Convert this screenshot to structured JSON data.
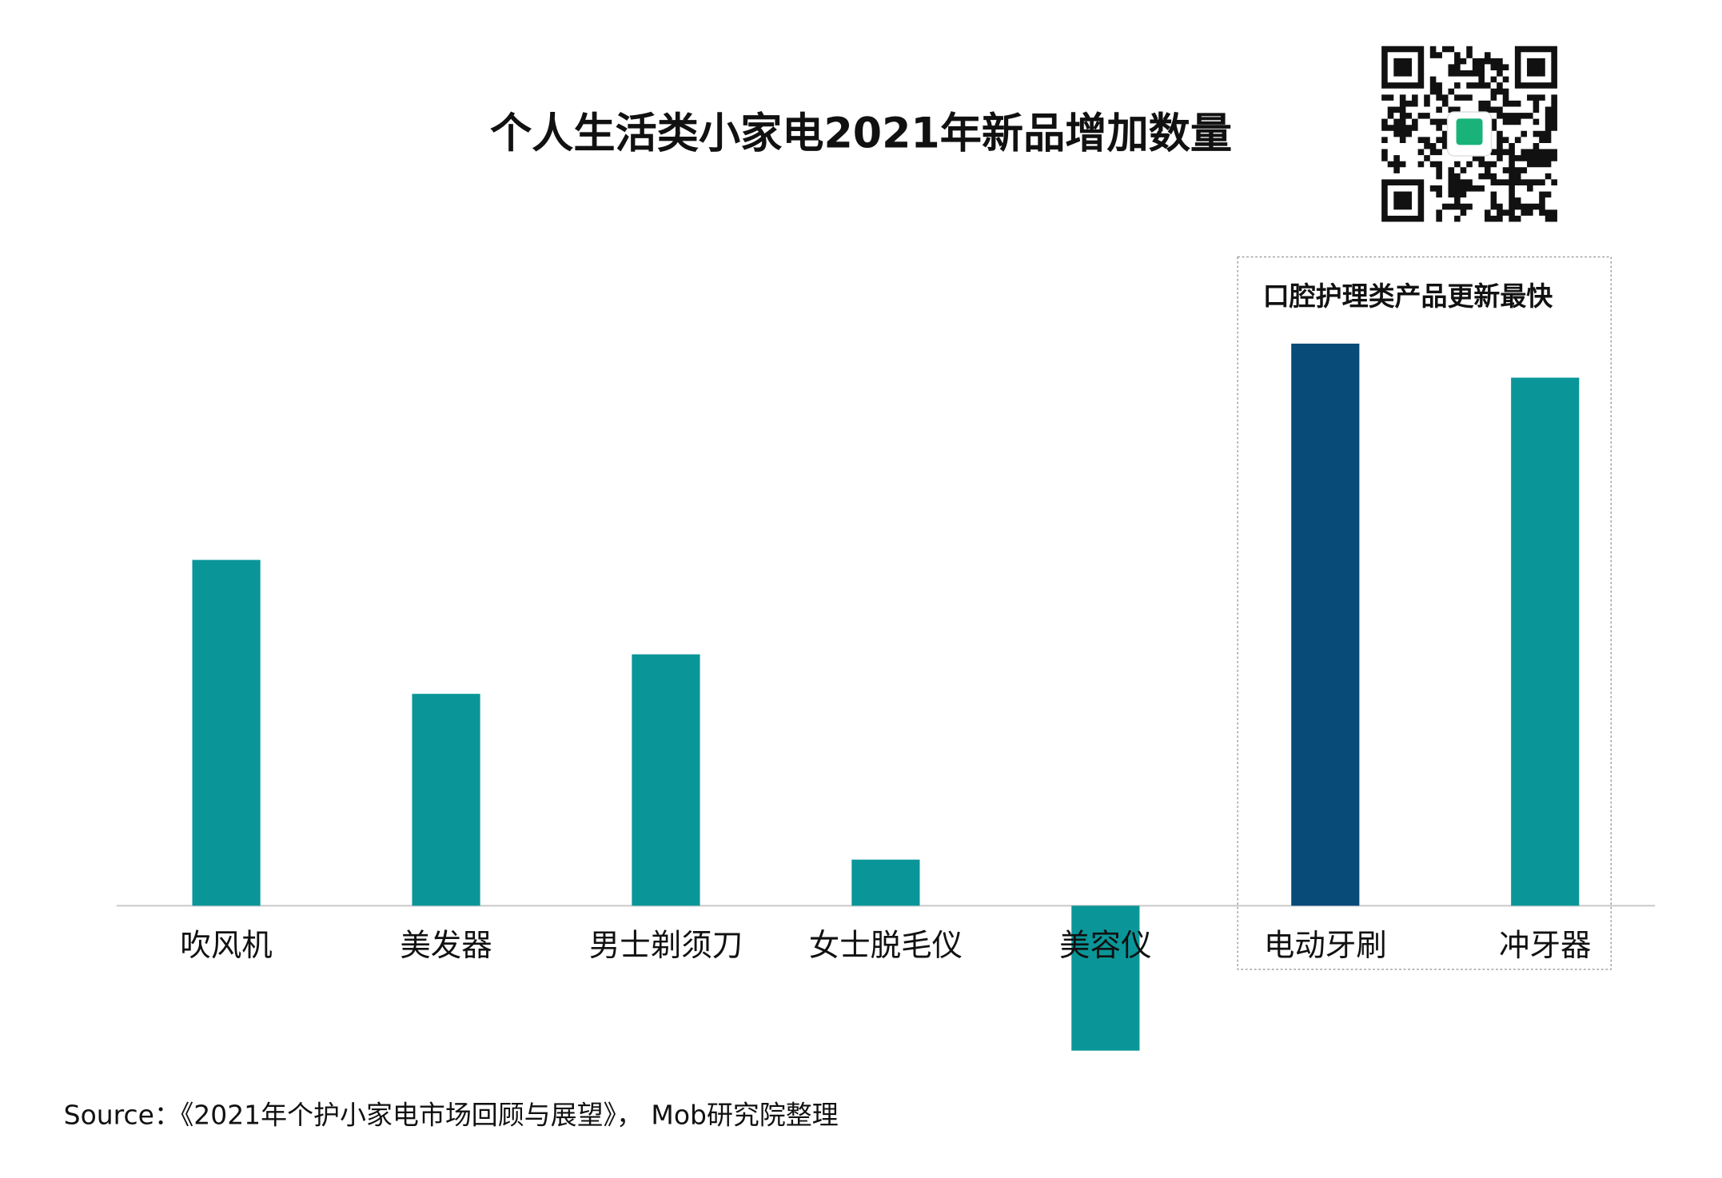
{
  "chart_data": {
    "type": "bar",
    "title": "个人生活类小家电2021年新品增加数量",
    "categories": [
      "吹风机",
      "美发器",
      "男士剃须刀",
      "女士脱毛仪",
      "美容仪",
      "电动牙刷",
      "冲牙器"
    ],
    "values": [
      315,
      193,
      229,
      42,
      -132,
      512,
      481
    ],
    "colors": [
      "#0a9699",
      "#0a9699",
      "#0a9699",
      "#0a9699",
      "#0a9699",
      "#084a78",
      "#0a9699"
    ],
    "ylim": [
      -150,
      520
    ],
    "annotation": "口腔护理类产品更新最快",
    "source": "Source：《2021年个护小家电市场回顾与展望》， Mob研究院整理"
  }
}
